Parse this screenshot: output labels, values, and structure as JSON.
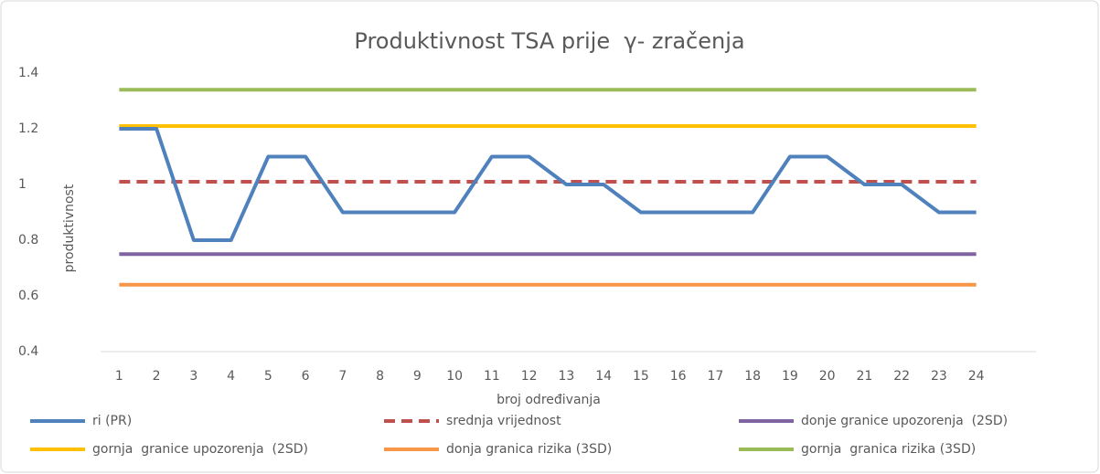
{
  "chart_data": {
    "type": "line",
    "title": "Produktivnost TSA prije  γ- zračenja",
    "xlabel": "broj određivanja",
    "ylabel": "produktivnost",
    "categories": [
      "1",
      "2",
      "3",
      "4",
      "5",
      "6",
      "7",
      "8",
      "9",
      "10",
      "11",
      "12",
      "13",
      "14",
      "15",
      "16",
      "17",
      "18",
      "19",
      "20",
      "21",
      "22",
      "23",
      "24"
    ],
    "ylim": [
      0.4,
      1.4
    ],
    "yticks": [
      0.4,
      0.6,
      0.8,
      1,
      1.2,
      1.4
    ],
    "grid": false,
    "legend": "bottom",
    "series": [
      {
        "name": "ri (PR)",
        "color": "#4f81bd",
        "style": "solid",
        "values": [
          1.2,
          1.2,
          0.8,
          0.8,
          1.1,
          1.1,
          0.9,
          0.9,
          0.9,
          0.9,
          1.1,
          1.1,
          1.0,
          1.0,
          0.9,
          0.9,
          0.9,
          0.9,
          1.1,
          1.1,
          1.0,
          1.0,
          0.9,
          0.9
        ]
      },
      {
        "name": "srednja vrijednost",
        "color": "#c0504d",
        "style": "dashed",
        "values": [
          1.01,
          1.01,
          1.01,
          1.01,
          1.01,
          1.01,
          1.01,
          1.01,
          1.01,
          1.01,
          1.01,
          1.01,
          1.01,
          1.01,
          1.01,
          1.01,
          1.01,
          1.01,
          1.01,
          1.01,
          1.01,
          1.01,
          1.01,
          1.01
        ]
      },
      {
        "name": "donje granice upozorenja  (2SD)",
        "color": "#8064a2",
        "style": "solid",
        "values": [
          0.75,
          0.75,
          0.75,
          0.75,
          0.75,
          0.75,
          0.75,
          0.75,
          0.75,
          0.75,
          0.75,
          0.75,
          0.75,
          0.75,
          0.75,
          0.75,
          0.75,
          0.75,
          0.75,
          0.75,
          0.75,
          0.75,
          0.75,
          0.75
        ]
      },
      {
        "name": "gornja  granice upozorenja  (2SD)",
        "color": "#ffc000",
        "style": "solid",
        "values": [
          1.21,
          1.21,
          1.21,
          1.21,
          1.21,
          1.21,
          1.21,
          1.21,
          1.21,
          1.21,
          1.21,
          1.21,
          1.21,
          1.21,
          1.21,
          1.21,
          1.21,
          1.21,
          1.21,
          1.21,
          1.21,
          1.21,
          1.21,
          1.21
        ]
      },
      {
        "name": "donja granica rizika (3SD)",
        "color": "#f79646",
        "style": "solid",
        "values": [
          0.64,
          0.64,
          0.64,
          0.64,
          0.64,
          0.64,
          0.64,
          0.64,
          0.64,
          0.64,
          0.64,
          0.64,
          0.64,
          0.64,
          0.64,
          0.64,
          0.64,
          0.64,
          0.64,
          0.64,
          0.64,
          0.64,
          0.64,
          0.64
        ]
      },
      {
        "name": "gornja  granica rizika (3SD)",
        "color": "#9bbb59",
        "style": "solid",
        "values": [
          1.34,
          1.34,
          1.34,
          1.34,
          1.34,
          1.34,
          1.34,
          1.34,
          1.34,
          1.34,
          1.34,
          1.34,
          1.34,
          1.34,
          1.34,
          1.34,
          1.34,
          1.34,
          1.34,
          1.34,
          1.34,
          1.34,
          1.34,
          1.34
        ]
      }
    ]
  }
}
